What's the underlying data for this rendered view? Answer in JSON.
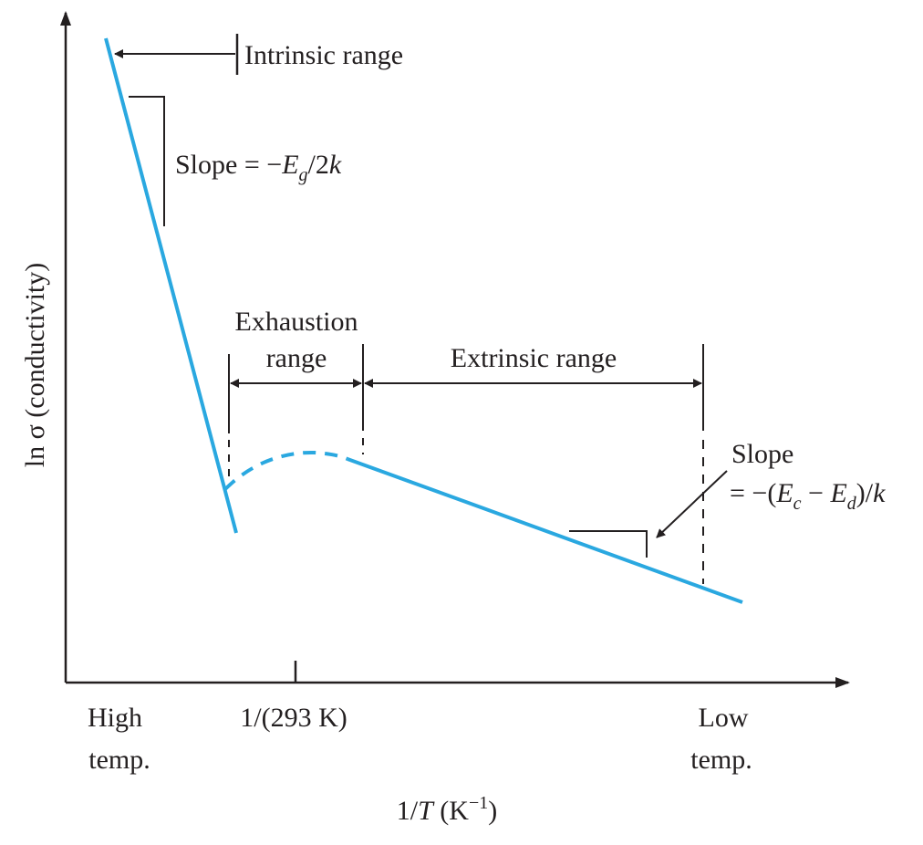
{
  "labels": {
    "y_axis": "ln σ (conductivity)",
    "x_axis_prefix": "1/",
    "x_axis_var": "T",
    "x_axis_unit_open": " (K",
    "x_axis_unit_sup": "−1",
    "x_axis_unit_close": ")",
    "x_high_line1": "High",
    "x_high_line2": "temp.",
    "x_tick_293": "1/(293 K)",
    "x_low_line1": "Low",
    "x_low_line2": "temp.",
    "intrinsic_range": "Intrinsic range",
    "exhaustion_line1": "Exhaustion",
    "exhaustion_line2": "range",
    "extrinsic_range": "Extrinsic range",
    "slope_intrinsic_prefix": "Slope = −",
    "slope_intrinsic_E": "E",
    "slope_intrinsic_sub": "g",
    "slope_intrinsic_suffix": "/2",
    "slope_intrinsic_k": "k",
    "slope_extrinsic_line1": "Slope",
    "slope_extrinsic_prefix": "= −(",
    "slope_extrinsic_E1": "E",
    "slope_extrinsic_sub1": "c",
    "slope_extrinsic_minus": " − ",
    "slope_extrinsic_E2": "E",
    "slope_extrinsic_sub2": "d",
    "slope_extrinsic_suffix": ")/",
    "slope_extrinsic_k": "k"
  },
  "colors": {
    "curve": "#2aa8e0",
    "ink": "#231f20",
    "background": "#ffffff"
  }
}
